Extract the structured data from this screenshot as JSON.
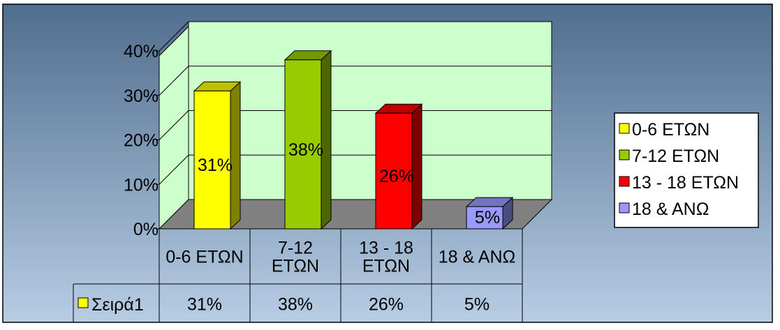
{
  "chart_data": {
    "type": "bar",
    "title": "",
    "xlabel": "",
    "ylabel": "",
    "categories": [
      "0-6 ΕΤΩΝ",
      "7-12 ΕΤΩΝ",
      "13 - 18 ΕΤΩΝ",
      "18 & ΑΝΩ"
    ],
    "category_axis_labels": [
      [
        "0-6 ΕΤΩΝ"
      ],
      [
        "7-12",
        "ΕΤΩΝ"
      ],
      [
        "13 - 18",
        "ΕΤΩΝ"
      ],
      [
        "18 & ΑΝΩ"
      ]
    ],
    "series": [
      {
        "name": "Σειρά1",
        "values": [
          0.31,
          0.38,
          0.26,
          0.05
        ]
      }
    ],
    "data_labels": [
      "31%",
      "38%",
      "26%",
      "5%"
    ],
    "ylim": [
      0,
      0.4
    ],
    "y_ticks": [
      "0%",
      "10%",
      "20%",
      "30%",
      "40%"
    ],
    "grid": true,
    "three_d": true,
    "legend": {
      "position": "right",
      "entries": [
        "0-6 ΕΤΩΝ",
        "7-12 ΕΤΩΝ",
        "13 - 18 ΕΤΩΝ",
        "18 & ΑΝΩ"
      ]
    },
    "data_table": {
      "series_label": "Σειρά1",
      "values": [
        "31%",
        "38%",
        "26%",
        "5%"
      ]
    },
    "colors": {
      "bar_fronts": [
        "#ffff00",
        "#99cc00",
        "#ff0000",
        "#9999ff"
      ],
      "bar_sides": [
        "#7f7f00",
        "#4c6600",
        "#7f0000",
        "#4c4c7f"
      ],
      "bar_tops": [
        "#bfbf00",
        "#739900",
        "#bf0000",
        "#7373bf"
      ],
      "series_swatch": "#ffff00",
      "plot_walls": "#ccffcc",
      "plot_floor": "#808080",
      "background_top": "#4f6d8d",
      "background_bottom": "#b7cde4"
    }
  }
}
